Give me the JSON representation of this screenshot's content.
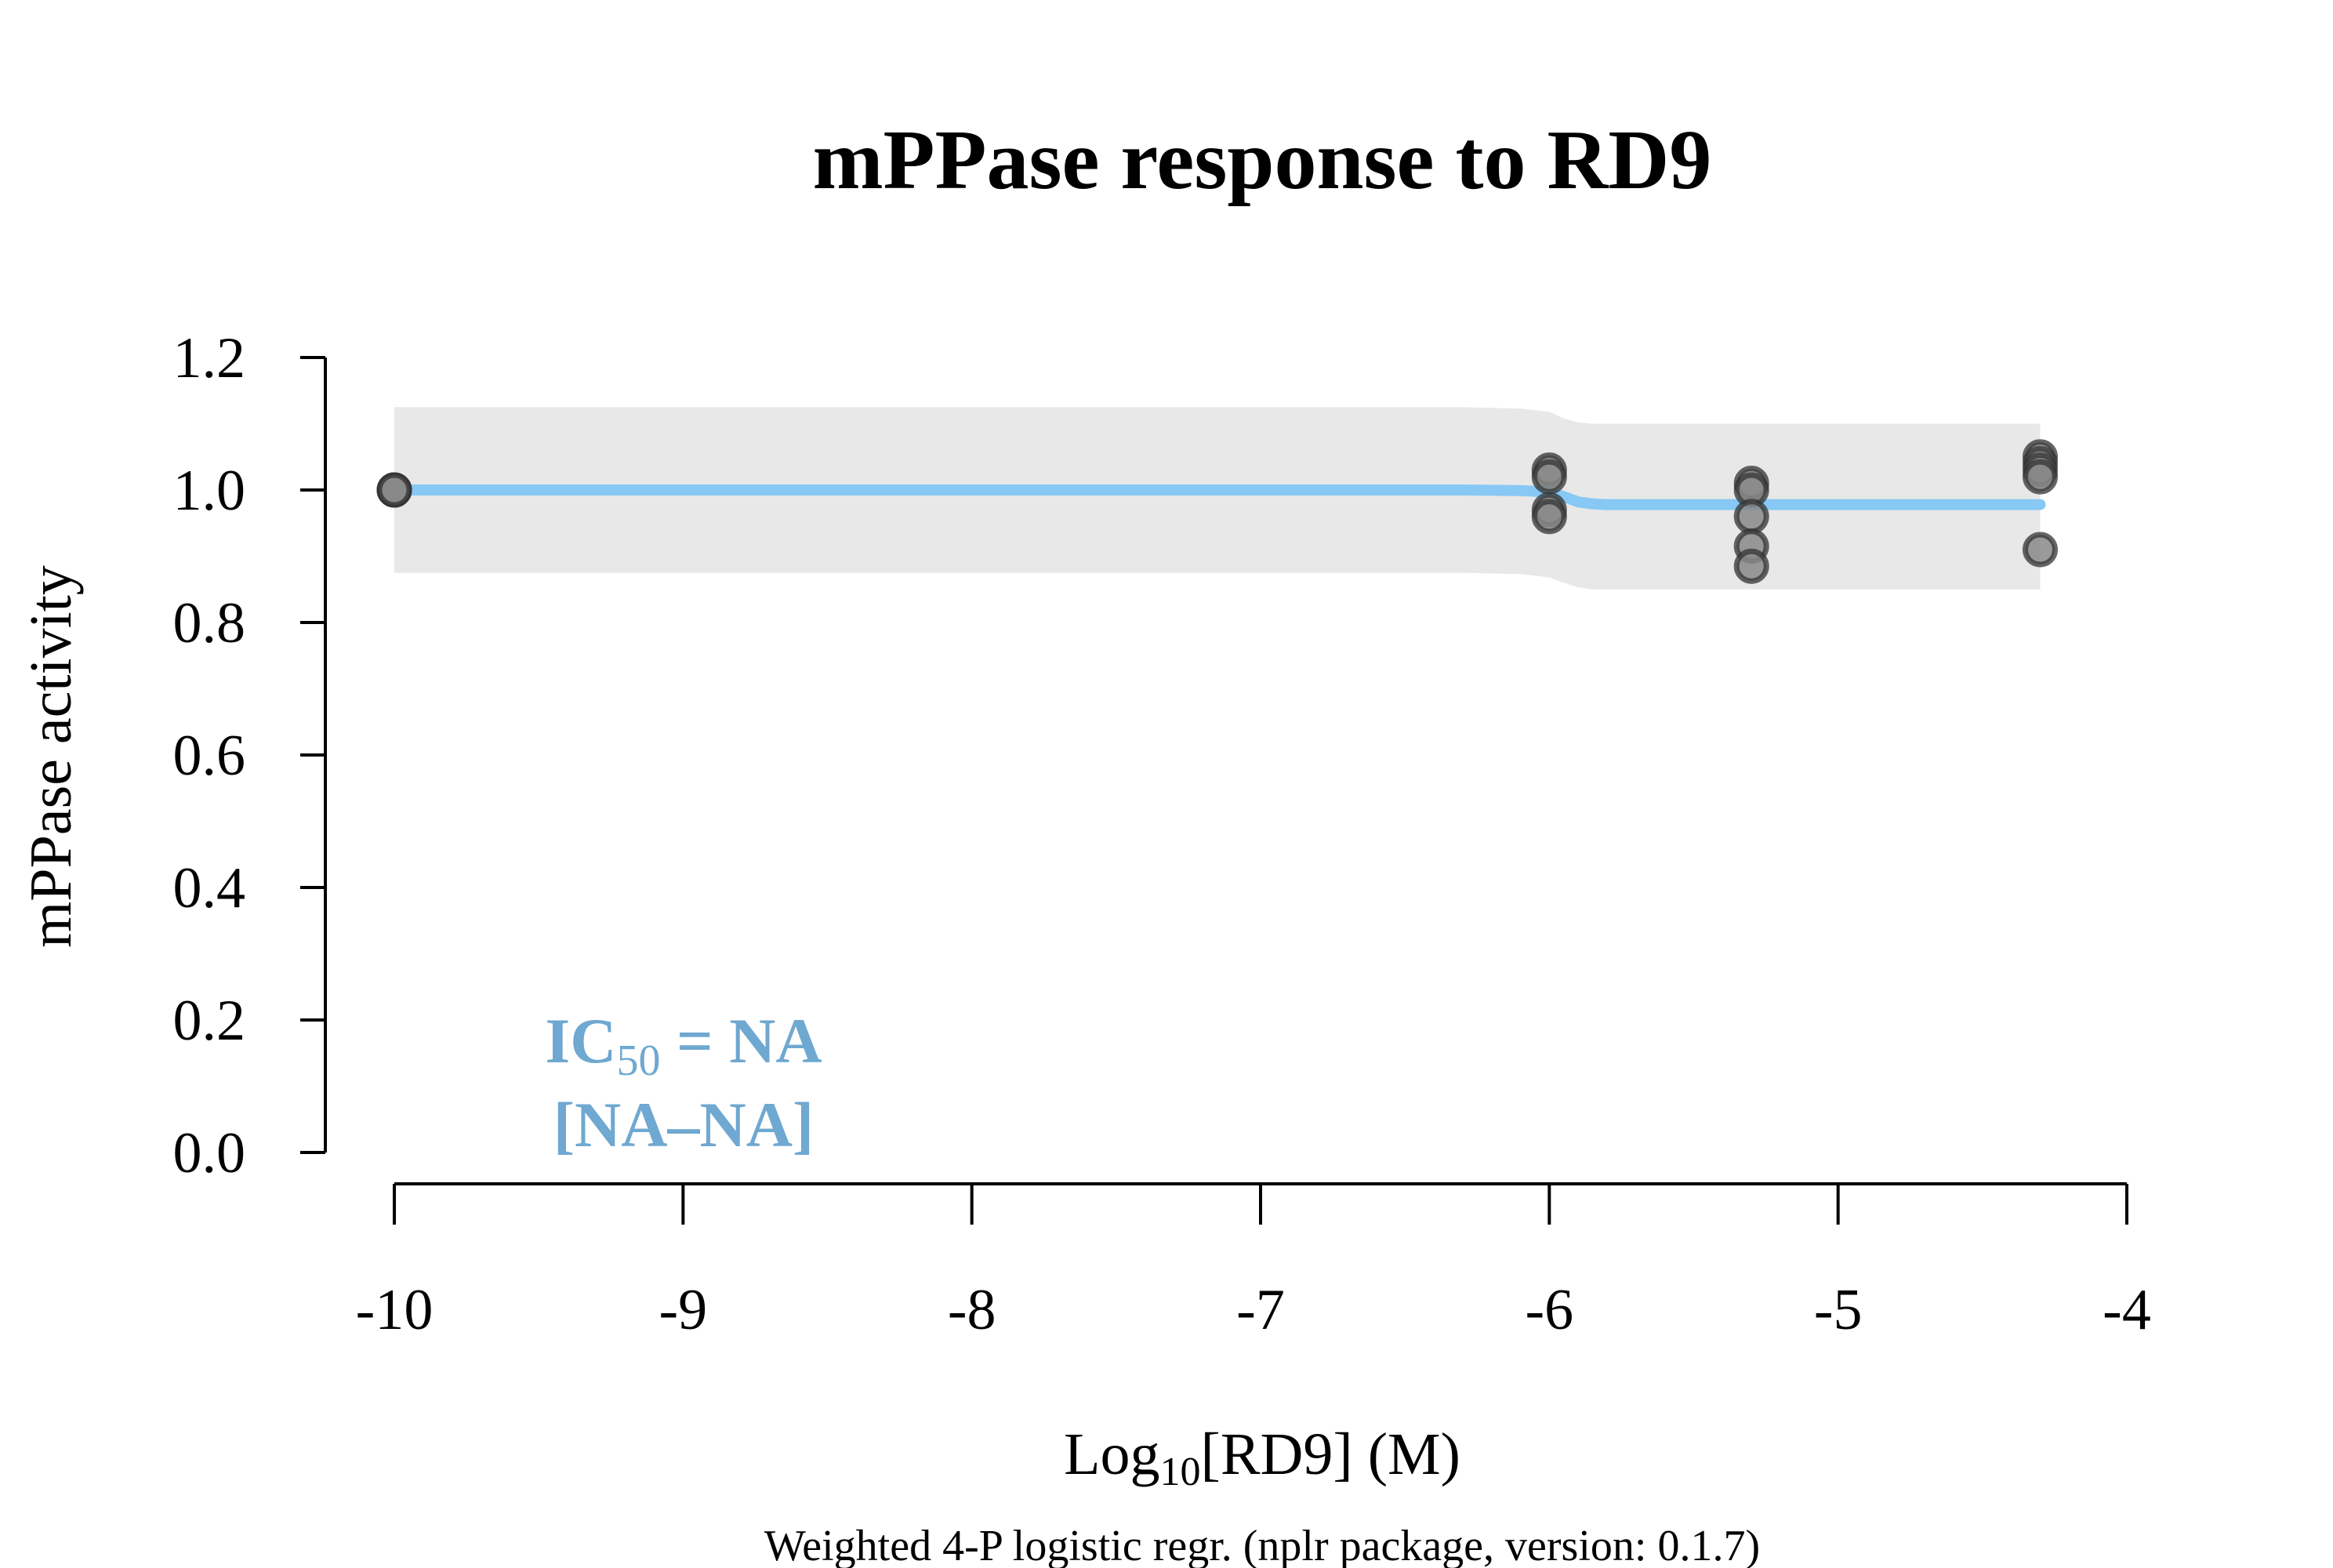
{
  "chart_data": {
    "type": "line",
    "title": "mPPase response to RD9",
    "xlabel_main": "Log",
    "xlabel_sub": "10",
    "xlabel_tail": "[RD9] (M)",
    "ylabel": "mPPase activity",
    "subtitle": "Weighted 4-P logistic regr. (nplr package, version: 0.1.7)",
    "xlim": [
      -10,
      -4
    ],
    "ylim": [
      0,
      1.2
    ],
    "x_ticks": [
      -10,
      -9,
      -8,
      -7,
      -6,
      -5,
      -4
    ],
    "x_tick_labels": [
      "-10",
      "-9",
      "-8",
      "-7",
      "-6",
      "-5",
      "-4"
    ],
    "y_ticks": [
      0,
      0.2,
      0.4,
      0.6,
      0.8,
      1.0,
      1.2
    ],
    "y_tick_labels": [
      "0.0",
      "0.2",
      "0.4",
      "0.6",
      "0.8",
      "1.0",
      "1.2"
    ],
    "annotation": {
      "line1_main": "IC",
      "line1_sub": "50",
      "line1_tail": " = NA",
      "line2": "[NA–NA]",
      "color": "#6fa8d0"
    },
    "points": [
      {
        "x": -10,
        "y": 1.0
      },
      {
        "x": -10,
        "y": 1.0
      },
      {
        "x": -10,
        "y": 1.0
      },
      {
        "x": -6,
        "y": 1.03
      },
      {
        "x": -6,
        "y": 1.02
      },
      {
        "x": -6,
        "y": 0.97
      },
      {
        "x": -6,
        "y": 0.96
      },
      {
        "x": -5.3,
        "y": 1.01
      },
      {
        "x": -5.3,
        "y": 1.0
      },
      {
        "x": -5.3,
        "y": 0.96
      },
      {
        "x": -5.3,
        "y": 0.915
      },
      {
        "x": -5.3,
        "y": 0.885
      },
      {
        "x": -4.3,
        "y": 1.05
      },
      {
        "x": -4.3,
        "y": 1.04
      },
      {
        "x": -4.3,
        "y": 1.03
      },
      {
        "x": -4.3,
        "y": 1.02
      },
      {
        "x": -4.3,
        "y": 0.91
      }
    ],
    "fit_curve": {
      "name": "4-P logistic fit",
      "x": [
        -10,
        -6.3,
        -6.1,
        -6.0,
        -5.95,
        -5.9,
        -5.85,
        -5.8,
        -5.5,
        -4.3
      ],
      "y": [
        1.0,
        1.0,
        0.999,
        0.997,
        0.99,
        0.982,
        0.979,
        0.978,
        0.978,
        0.978
      ]
    },
    "confidence_band": {
      "x": [
        -10,
        -6.3,
        -6.1,
        -6.0,
        -5.95,
        -5.9,
        -5.85,
        -5.8,
        -5.5,
        -4.3
      ],
      "upper": [
        1.125,
        1.125,
        1.123,
        1.118,
        1.108,
        1.102,
        1.1,
        1.1,
        1.1,
        1.1
      ],
      "lower": [
        0.875,
        0.875,
        0.873,
        0.868,
        0.86,
        0.853,
        0.85,
        0.85,
        0.85,
        0.85
      ]
    },
    "colors": {
      "curve": "#87c8f5",
      "band": "#e8e8e8",
      "point_fill": "#888888",
      "point_stroke": "#333333",
      "axis": "#000000"
    },
    "grid": false
  }
}
